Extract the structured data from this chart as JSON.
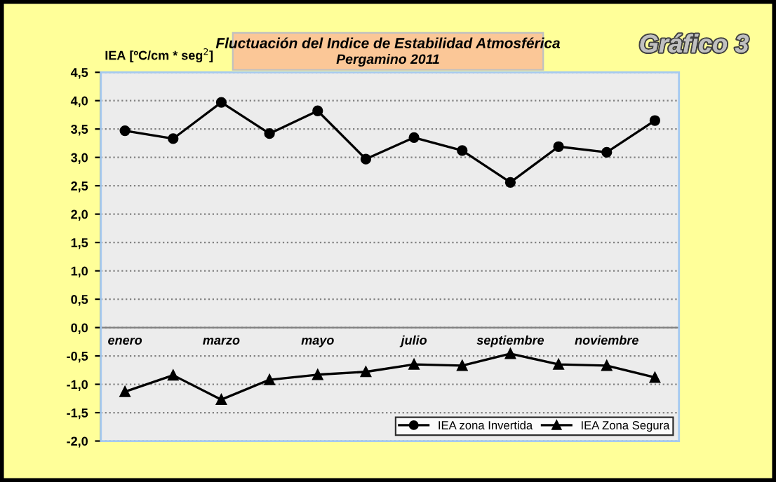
{
  "chart_data": {
    "type": "line",
    "title": "Fluctuación del Indice de Estabilidad Atmosférica",
    "subtitle": "Pergamino 2011",
    "ylabel": "IEA [ºC/cm * seg$^{2}$]",
    "annotations": [
      "Gráfico 3"
    ],
    "categories": [
      "enero",
      null,
      "marzo",
      null,
      "mayo",
      null,
      "julio",
      null,
      "septiembre",
      null,
      "noviembre",
      null
    ],
    "series": [
      {
        "name": "IEA zona Invertida",
        "color": "#000000",
        "marker": "circle",
        "values": [
          3.47,
          3.33,
          3.97,
          3.42,
          3.82,
          2.97,
          3.35,
          3.12,
          2.56,
          3.19,
          3.09,
          3.65
        ]
      },
      {
        "name": "IEA Zona Segura",
        "color": "#000000",
        "marker": "triangle",
        "values": [
          -1.13,
          -0.84,
          -1.27,
          -0.92,
          -0.83,
          -0.78,
          -0.65,
          -0.67,
          -0.46,
          -0.65,
          -0.67,
          -0.88
        ]
      }
    ],
    "ylim": [
      -2,
      4.5
    ],
    "yticks": [
      {
        "value": -2,
        "label": "-2,0"
      },
      {
        "value": -1.5,
        "label": "-1,5"
      },
      {
        "value": -1,
        "label": "-1,0"
      },
      {
        "value": -0.5,
        "label": "-0,5"
      },
      {
        "value": 0,
        "label": "0,0"
      },
      {
        "value": 0.5,
        "label": "0,5"
      },
      {
        "value": 1,
        "label": "1,0"
      },
      {
        "value": 1.5,
        "label": "1,5"
      },
      {
        "value": 2,
        "label": "2,0"
      },
      {
        "value": 2.5,
        "label": "2,5"
      },
      {
        "value": 3,
        "label": "3,0"
      },
      {
        "value": 3.5,
        "label": "3,5"
      },
      {
        "value": 4,
        "label": "4,0"
      },
      {
        "value": 4.5,
        "label": "4,5"
      }
    ],
    "grid": "y",
    "legend": "bottom right",
    "line_style": "solid"
  }
}
